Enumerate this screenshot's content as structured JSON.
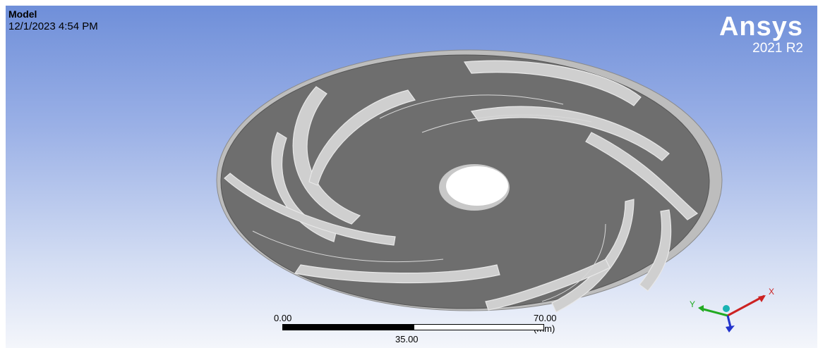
{
  "header": {
    "title": "Model",
    "timestamp": "12/1/2023 4:54 PM"
  },
  "brand": {
    "name": "Ansys",
    "version": "2021 R2"
  },
  "scale": {
    "start": "0.00",
    "end": "70.00 (mm)",
    "mid": "35.00"
  },
  "triad": {
    "x_label": "X",
    "y_label": "Y",
    "x_color": "#cc2222",
    "y_color": "#22aa22",
    "z_color": "#2233cc",
    "origin_color": "#19b3b3"
  },
  "colors": {
    "background_top": "#6f8fd9",
    "background_bottom": "#f4f6fb",
    "model_face": "#6e6e6e",
    "blade_face": "#cfcfcf"
  }
}
